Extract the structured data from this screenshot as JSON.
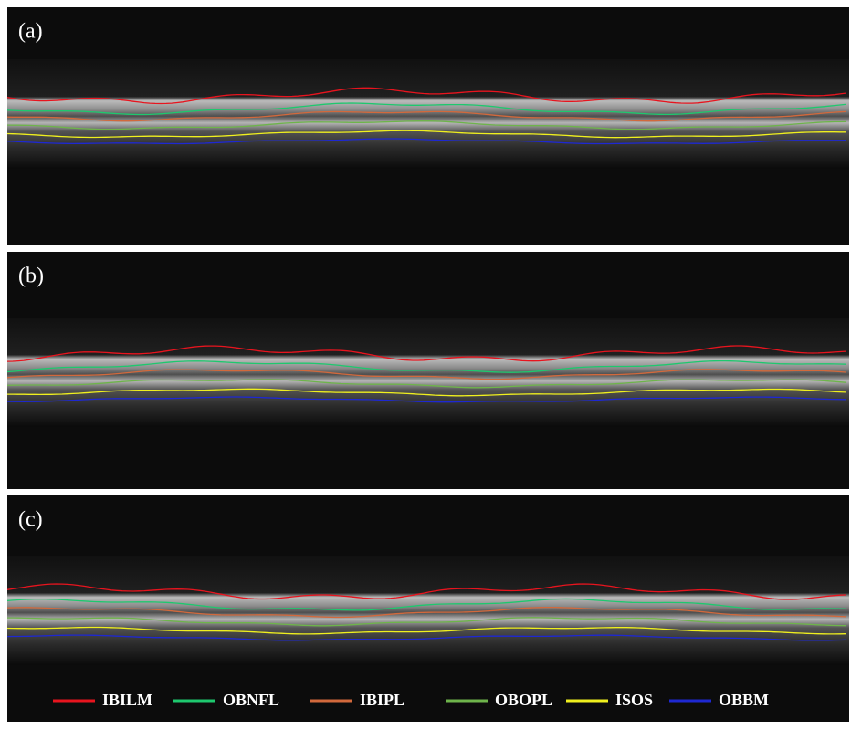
{
  "panels": [
    {
      "label": "(a)"
    },
    {
      "label": "(b)"
    },
    {
      "label": "(c)"
    }
  ],
  "legend": [
    {
      "name": "IBILM",
      "color": "#e8141e"
    },
    {
      "name": "OBNFL",
      "color": "#1ec86e"
    },
    {
      "name": "IBIPL",
      "color": "#d2693c"
    },
    {
      "name": "OBOPL",
      "color": "#6eb44b"
    },
    {
      "name": "ISOS",
      "color": "#f0f01e"
    },
    {
      "name": "OBBM",
      "color": "#1e28d2"
    }
  ]
}
